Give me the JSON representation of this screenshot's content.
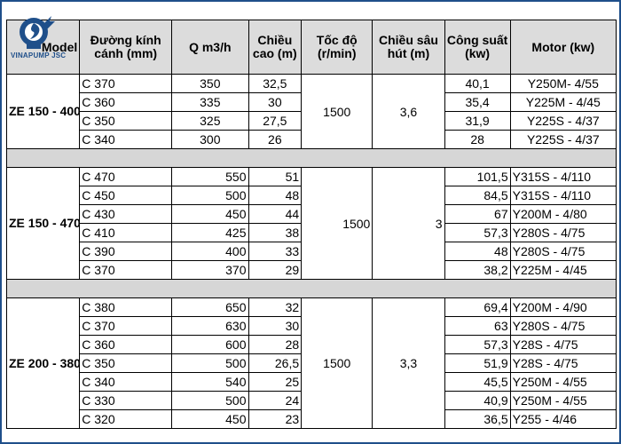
{
  "logo": {
    "text": "VINAPUMP JSC",
    "icon": "pump-logo-icon"
  },
  "table": {
    "headers": [
      "Model",
      "Đường kính cánh (mm)",
      "Q m3/h",
      "Chiều cao (m)",
      "Tốc độ (r/min)",
      "Chiều sâu hút (m)",
      "Công suất (kw)",
      "Motor (kw)"
    ],
    "groups": [
      {
        "model": "ZE 150 - 400",
        "speed": "1500",
        "suction": "3,6",
        "rows": [
          {
            "impeller": "C 370",
            "q": "350",
            "head": "32,5",
            "power": "40,1",
            "motor": "Y250M- 4/55"
          },
          {
            "impeller": "C 360",
            "q": "335",
            "head": "30",
            "power": "35,4",
            "motor": "Y225M - 4/45"
          },
          {
            "impeller": "C 350",
            "q": "325",
            "head": "27,5",
            "power": "31,9",
            "motor": "Y225S - 4/37"
          },
          {
            "impeller": "C 340",
            "q": "300",
            "head": "26",
            "power": "28",
            "motor": "Y225S - 4/37"
          }
        ]
      },
      {
        "model": "ZE 150 - 470",
        "speed": "1500",
        "suction": "3",
        "rows": [
          {
            "impeller": "C 470",
            "q": "550",
            "head": "51",
            "power": "101,5",
            "motor": "Y315S - 4/110"
          },
          {
            "impeller": "C 450",
            "q": "500",
            "head": "48",
            "power": "84,5",
            "motor": "Y315S - 4/110"
          },
          {
            "impeller": "C 430",
            "q": "450",
            "head": "44",
            "power": "67",
            "motor": "Y200M - 4/80"
          },
          {
            "impeller": "C 410",
            "q": "425",
            "head": "38",
            "power": "57,3",
            "motor": "Y280S - 4/75"
          },
          {
            "impeller": "C 390",
            "q": "400",
            "head": "33",
            "power": "48",
            "motor": "Y280S - 4/75"
          },
          {
            "impeller": "C 370",
            "q": "370",
            "head": "29",
            "power": "38,2",
            "motor": "Y225M - 4/45"
          }
        ]
      },
      {
        "model": "ZE 200 - 380",
        "speed": "1500",
        "suction": "3,3",
        "rows": [
          {
            "impeller": "C 380",
            "q": "650",
            "head": "32",
            "power": "69,4",
            "motor": "Y200M - 4/90"
          },
          {
            "impeller": "C 370",
            "q": "630",
            "head": "30",
            "power": "63",
            "motor": "Y280S - 4/75"
          },
          {
            "impeller": "C 360",
            "q": "600",
            "head": "28",
            "power": "57,3",
            "motor": "Y28S - 4/75"
          },
          {
            "impeller": "C 350",
            "q": "500",
            "head": "26,5",
            "power": "51,9",
            "motor": "Y28S - 4/75"
          },
          {
            "impeller": "C 340",
            "q": "540",
            "head": "25",
            "power": "45,5",
            "motor": "Y250M - 4/55"
          },
          {
            "impeller": "C 330",
            "q": "500",
            "head": "24",
            "power": "40,9",
            "motor": "Y250M - 4/55"
          },
          {
            "impeller": "C 320",
            "q": "450",
            "head": "23",
            "power": "36,5",
            "motor": "Y255 - 4/46"
          }
        ]
      }
    ]
  },
  "colors": {
    "header_bg": "#dcdcdc",
    "separator_bg": "#d6d6d6",
    "brand": "#1f4f8a"
  }
}
